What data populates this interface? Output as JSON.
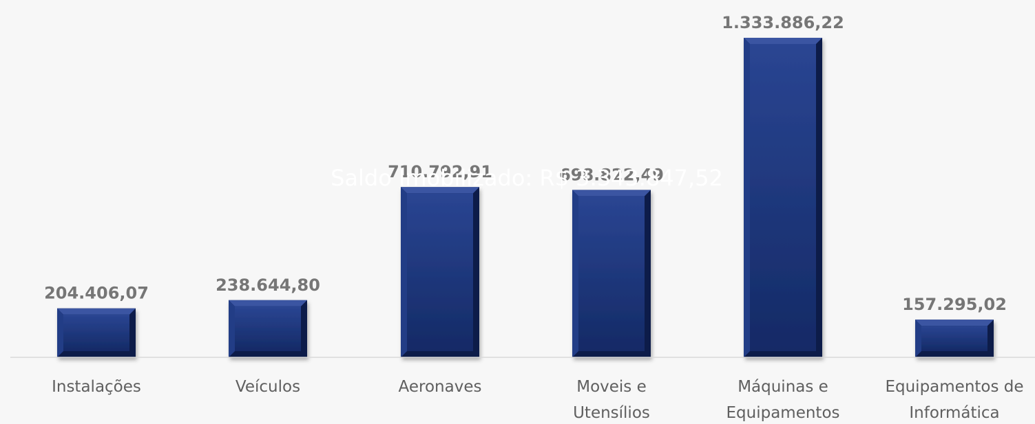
{
  "chart_data": {
    "type": "bar",
    "categories": [
      [
        "Instalações"
      ],
      [
        "Veículos"
      ],
      [
        "Aeronaves"
      ],
      [
        "Moveis e",
        "Utensílios"
      ],
      [
        "Máquinas e",
        "Equipamentos"
      ],
      [
        "Equipamentos de",
        "Informática"
      ]
    ],
    "values": [
      204406.07,
      238644.8,
      710792.91,
      698822.49,
      1333886.22,
      157295.02
    ],
    "value_labels": [
      "204.406,07",
      "238.644,80",
      "710.792,91",
      "698.822,49",
      "1.333.886,22",
      "157.295,02"
    ],
    "overlay_text": "Saldo Imobilizado: R$ 3.343.847,52",
    "ylim": [
      0,
      1333886.22
    ],
    "grid": false,
    "legend": "none",
    "colors": {
      "bar": "#1b3272",
      "bar_dark": "#0d1c4a",
      "bar_light": "#3a55a2",
      "value_label": "#767676",
      "category_label": "#5f5f5f",
      "background": "#f7f7f7"
    }
  }
}
